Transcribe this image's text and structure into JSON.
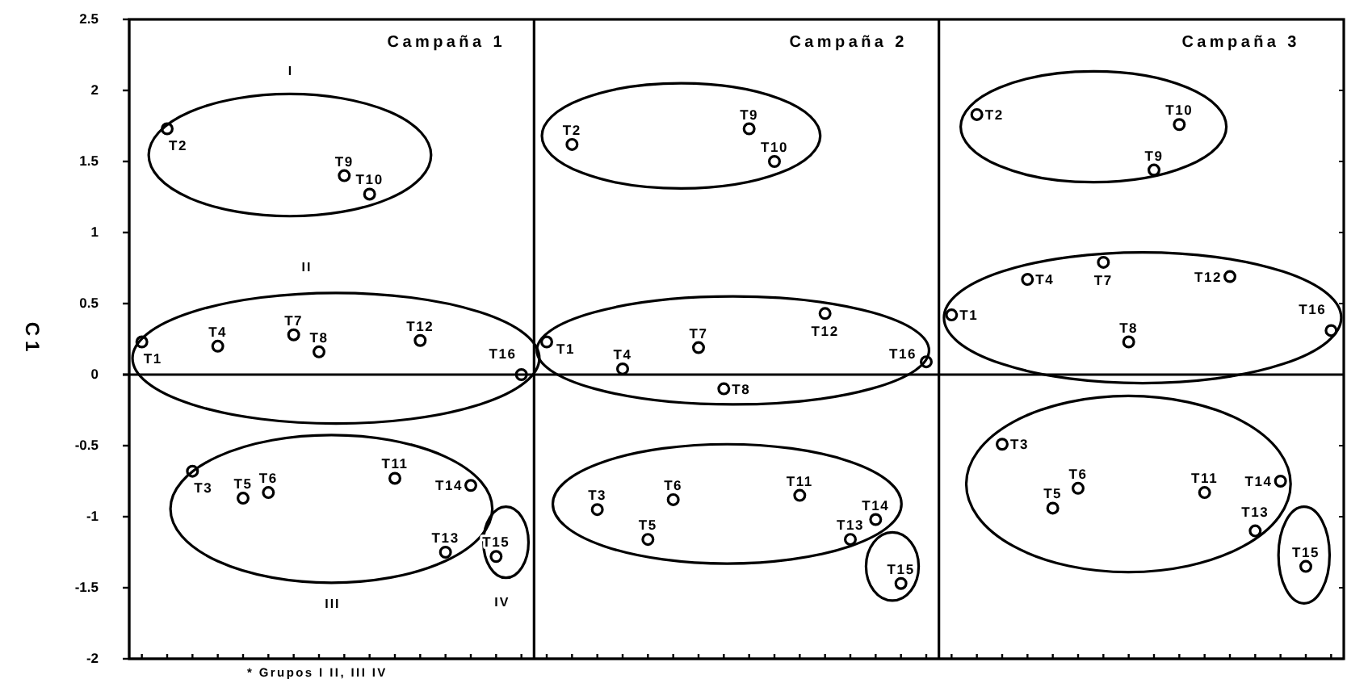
{
  "chart_data": {
    "type": "scatter",
    "ylabel": "C1",
    "categories": [
      null,
      null,
      null,
      null,
      null,
      null,
      null,
      null,
      null,
      null,
      null,
      null,
      null,
      null,
      null,
      null,
      null,
      null,
      null,
      null,
      null,
      null,
      null,
      null,
      null,
      null,
      null,
      null,
      null,
      null,
      null,
      null,
      null,
      null,
      null,
      null,
      null,
      null,
      null,
      null,
      null,
      null,
      null,
      null,
      null,
      null,
      null,
      null
    ],
    "values": [
      0.23,
      1.73,
      -0.68,
      0.2,
      -0.87,
      -0.83,
      0.28,
      0.16,
      1.4,
      1.27,
      -0.73,
      0.24,
      -1.25,
      -0.78,
      -1.28,
      0.0,
      0.23,
      1.62,
      -0.95,
      0.04,
      -1.16,
      -0.88,
      0.19,
      -0.1,
      1.73,
      1.5,
      -0.85,
      0.43,
      -1.16,
      -1.02,
      -1.47,
      0.09,
      0.42,
      1.83,
      -0.49,
      0.67,
      -0.94,
      -0.8,
      0.79,
      0.23,
      1.44,
      1.76,
      -0.83,
      0.69,
      -1.1,
      -0.75,
      -1.35,
      0.31
    ],
    "value_labels": [
      "T1",
      "T2",
      "T3",
      "T4",
      "T5",
      "T6",
      "T7",
      "T8",
      "T9",
      "T10",
      "T11",
      "T12",
      "T13",
      "T14",
      "T15",
      "T16",
      "T1",
      "T2",
      "T3",
      "T4",
      "T5",
      "T6",
      "T7",
      "T8",
      "T9",
      "T10",
      "T11",
      "T12",
      "T13",
      "T14",
      "T15",
      "T16",
      "T1",
      "T2",
      "T3",
      "T4",
      "T5",
      "T6",
      "T7",
      "T8",
      "T9",
      "T10",
      "T11",
      "T12",
      "T13",
      "T14",
      "T15",
      "T16"
    ],
    "color": "#000000",
    "marker": "circle",
    "ylim": [
      -2,
      2.5
    ],
    "yticks": [
      -2,
      -1.5,
      -1,
      -0.5,
      0,
      0.5,
      1,
      1.5,
      2,
      2.5
    ],
    "tick_labels": "y",
    "ref_lines": [
      {
        "axis": "y",
        "value": 0
      }
    ],
    "annotations": [
      "Campaña 1",
      "Campaña 2",
      "Campaña 3",
      "I",
      "II",
      "III",
      "IV",
      "* Grupos I II, III IV"
    ]
  }
}
